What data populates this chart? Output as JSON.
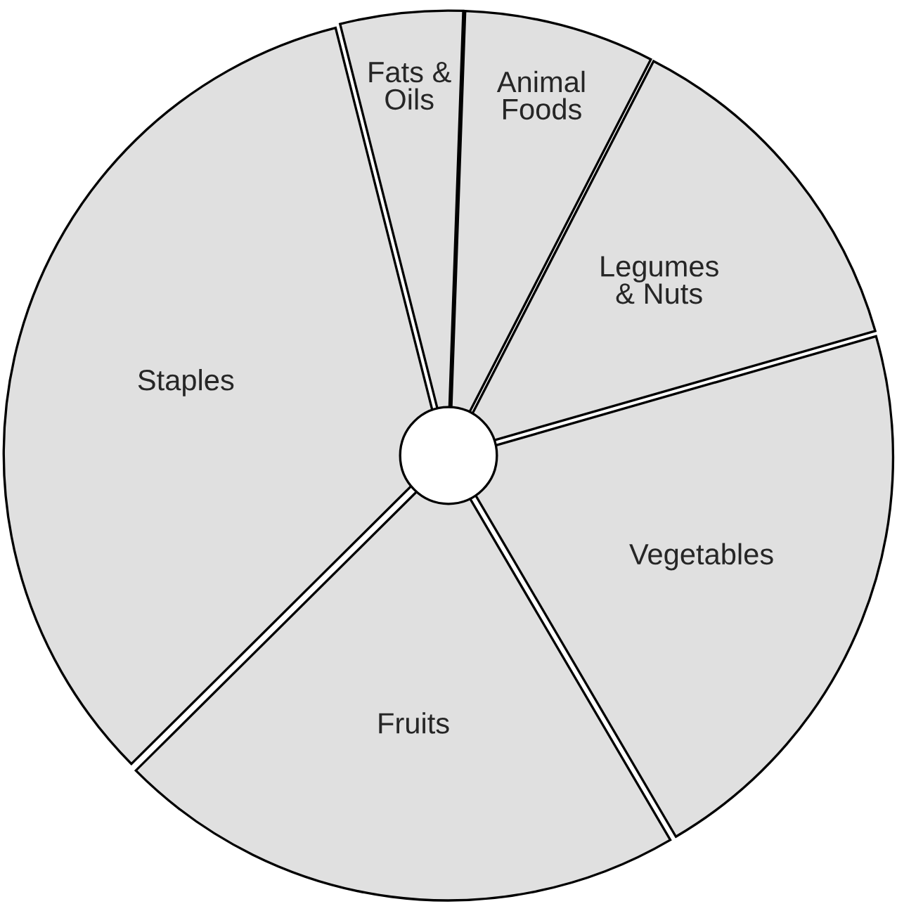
{
  "chart_data": {
    "type": "pie",
    "categories": [
      "Fats &\nOils",
      "Animal\nFoods",
      "Legumes\n& Nuts",
      "Vegetables",
      "Fruits",
      "Staples"
    ],
    "values": [
      4.5,
      7,
      13,
      21,
      21,
      33.5
    ],
    "colors": [
      "#e0e0e0",
      "#e0e0e0",
      "#e0e0e0",
      "#e0e0e0",
      "#e0e0e0",
      "#e0e0e0"
    ]
  }
}
